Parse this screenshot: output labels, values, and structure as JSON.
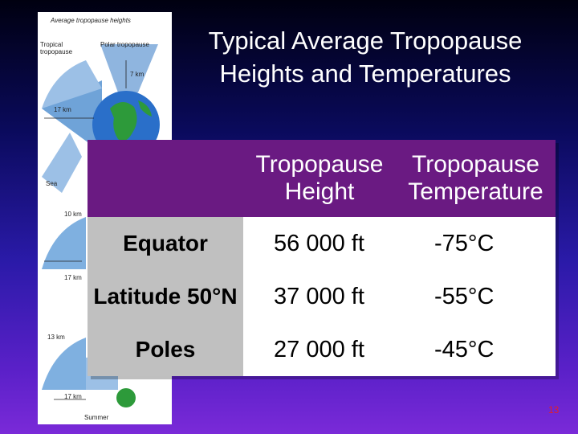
{
  "slide": {
    "title": "Typical Average Tropopause Heights and Temperatures",
    "page_number": "13"
  },
  "figure": {
    "heading": "Average tropopause heights",
    "label_tropical": "Tropical tropopause",
    "label_polar": "Polar tropopause",
    "label_7km": "7 km",
    "label_17km": "17 km",
    "label_sea": "Sea",
    "label_10km": "10 km",
    "label_17km_b": "17 km",
    "label_13km": "13 km",
    "label_17km_c": "17 km",
    "label_summer": "Summer"
  },
  "table": {
    "headers": [
      "",
      "Tropopause Height",
      "Tropopause Temperature"
    ],
    "rows": [
      {
        "label": "Equator",
        "height": "56 000 ft",
        "temperature": "-75°C"
      },
      {
        "label": "Latitude 50°N",
        "height": "37 000 ft",
        "temperature": "-55°C"
      },
      {
        "label": "Poles",
        "height": "27 000 ft",
        "temperature": "-45°C"
      }
    ]
  }
}
